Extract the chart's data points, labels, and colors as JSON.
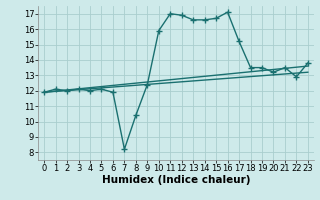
{
  "background_color": "#ceeaea",
  "grid_color": "#aacece",
  "line_color": "#1a7070",
  "line_width": 1.0,
  "marker": "+",
  "marker_size": 4,
  "marker_edge_width": 1.0,
  "xlabel": "Humidex (Indice chaleur)",
  "xlabel_fontsize": 7.5,
  "xlim": [
    -0.5,
    23.5
  ],
  "ylim": [
    7.5,
    17.5
  ],
  "xticks": [
    0,
    1,
    2,
    3,
    4,
    5,
    6,
    7,
    8,
    9,
    10,
    11,
    12,
    13,
    14,
    15,
    16,
    17,
    18,
    19,
    20,
    21,
    22,
    23
  ],
  "yticks": [
    8,
    9,
    10,
    11,
    12,
    13,
    14,
    15,
    16,
    17
  ],
  "tick_fontsize": 6.0,
  "line1_x": [
    0,
    1,
    2,
    3,
    4,
    5,
    6,
    7,
    8,
    9,
    10,
    11,
    12,
    13,
    14,
    15,
    16,
    17,
    18,
    19,
    20,
    21,
    22,
    23
  ],
  "line1_y": [
    11.9,
    12.1,
    12.0,
    12.1,
    12.0,
    12.1,
    11.9,
    8.2,
    10.4,
    12.4,
    15.9,
    17.0,
    16.9,
    16.6,
    16.6,
    16.7,
    17.1,
    15.2,
    13.5,
    13.5,
    13.2,
    13.5,
    12.9,
    13.8
  ],
  "line2_x": [
    0,
    23
  ],
  "line2_y": [
    11.9,
    13.6
  ],
  "line3_x": [
    0,
    23
  ],
  "line3_y": [
    11.9,
    13.2
  ]
}
